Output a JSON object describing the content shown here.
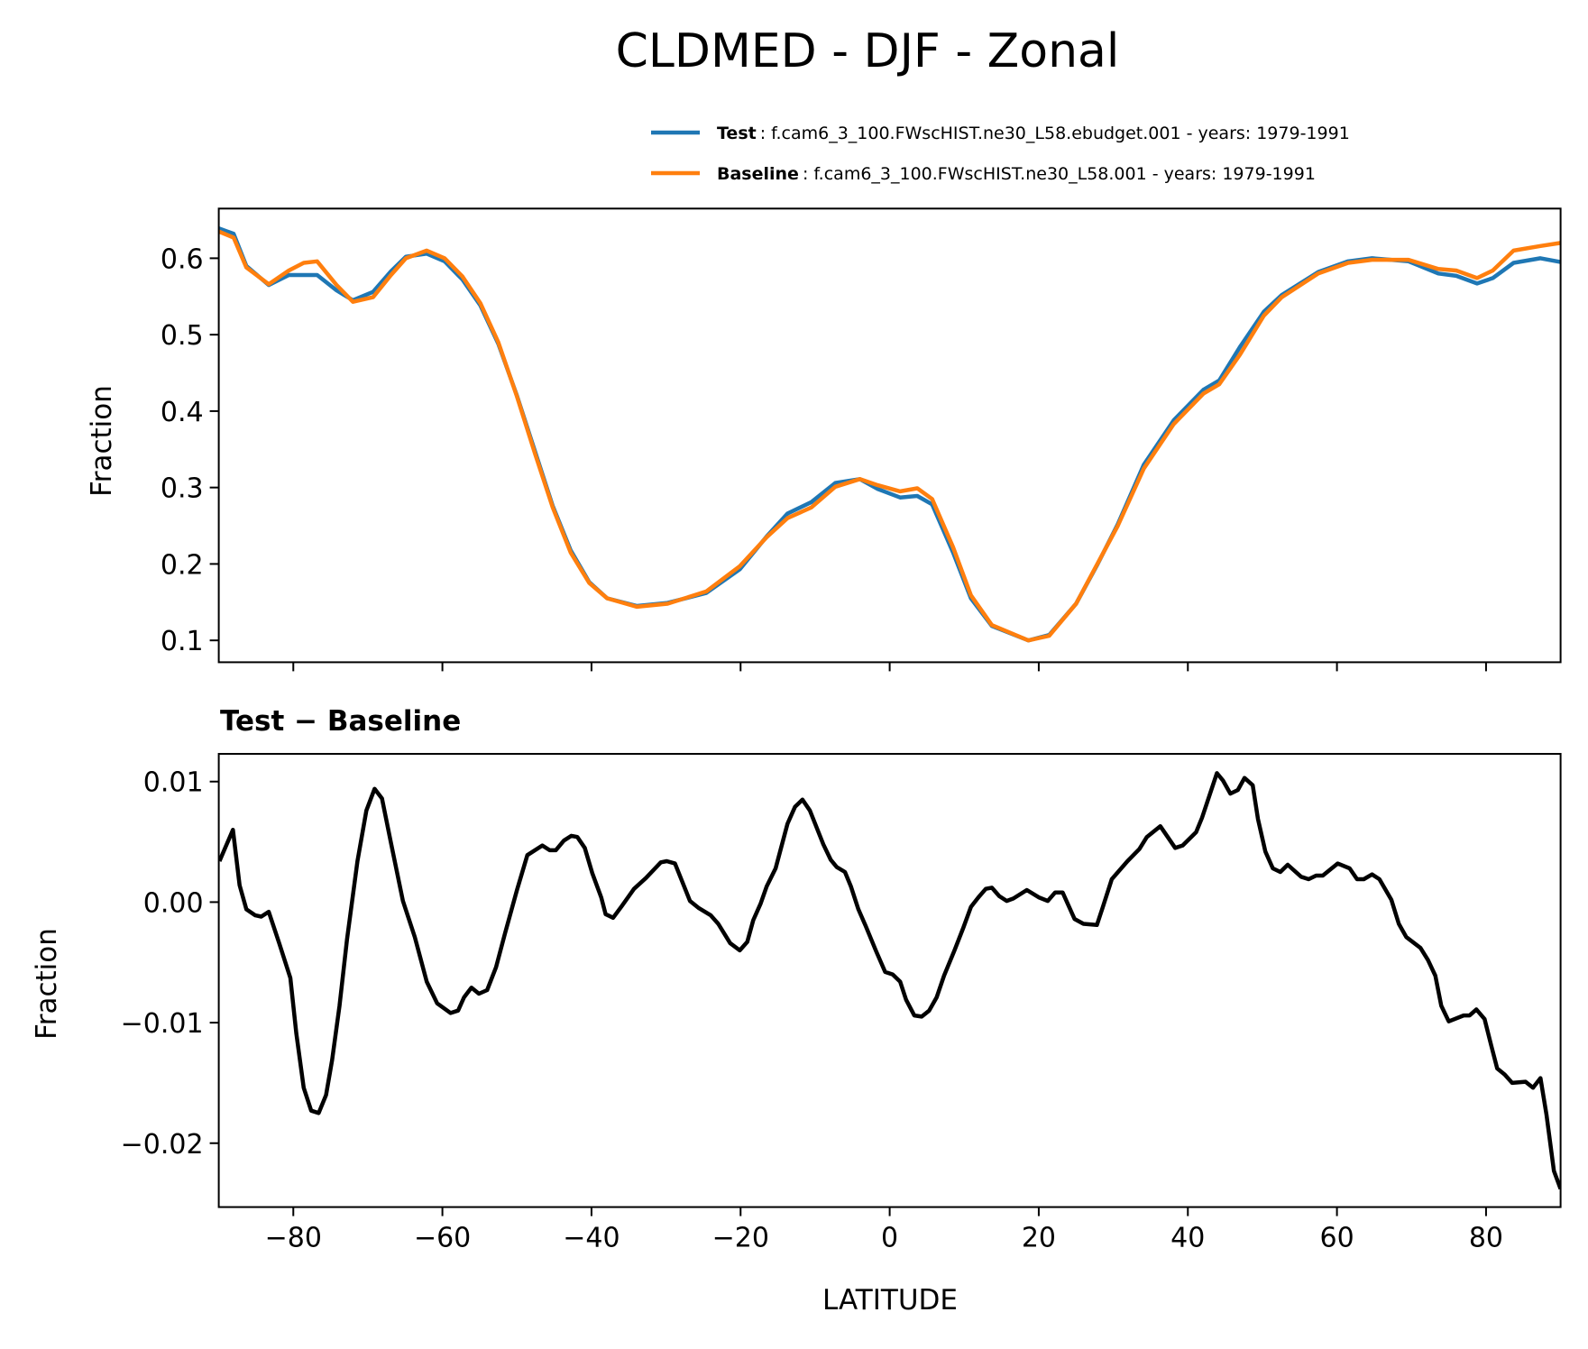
{
  "chart_data": [
    {
      "type": "line",
      "title": "CLDMED - DJF - Zonal",
      "xlabel": "",
      "ylabel": "Fraction",
      "xlim": [
        -90,
        90
      ],
      "ylim": [
        0.0714,
        0.665
      ],
      "x_ticks": [
        -80,
        -60,
        -40,
        -20,
        0,
        20,
        40,
        60,
        80
      ],
      "y_ticks": [
        0.1,
        0.2,
        0.3,
        0.4,
        0.5,
        0.6
      ],
      "y_ticklabels": [
        "0.1",
        "0.2",
        "0.3",
        "0.4",
        "0.5",
        "0.6"
      ],
      "grid": false,
      "legend_position": "top-right",
      "legend": [
        {
          "name": "Test",
          "desc": ": f.cam6_3_100.FWscHIST.ne30_L58.ebudget.001 - years: 1979-1991",
          "color": "#1f77b4"
        },
        {
          "name": "Baseline",
          "desc": ": f.cam6_3_100.FWscHIST.ne30_L58.001 - years: 1979-1991",
          "color": "#ff7f0e"
        }
      ],
      "x": [
        -90,
        -88,
        -86.3,
        -83.3,
        -80.6,
        -78.6,
        -76.8,
        -74.2,
        -72,
        -69.3,
        -66.9,
        -64.9,
        -62.1,
        -59.7,
        -57.3,
        -54.9,
        -52.5,
        -50,
        -47.6,
        -45.2,
        -42.8,
        -40.3,
        -37.9,
        -33.9,
        -29.8,
        -24.6,
        -20.1,
        -16.5,
        -13.7,
        -10.5,
        -7.3,
        -4,
        -1.6,
        1.4,
        3.7,
        5.7,
        8.5,
        10.9,
        13.7,
        18.6,
        21.4,
        25,
        27.8,
        30.6,
        34.1,
        38.1,
        42.1,
        44.2,
        47,
        50.2,
        52.6,
        57.5,
        61.5,
        64.7,
        69.6,
        73.6,
        76,
        78.8,
        80.9,
        83.7,
        87.3,
        90
      ],
      "series": [
        {
          "name": "Test",
          "color": "#1f77b4",
          "values": [
            0.639,
            0.632,
            0.59,
            0.565,
            0.578,
            0.578,
            0.578,
            0.558,
            0.545,
            0.556,
            0.583,
            0.602,
            0.606,
            0.596,
            0.572,
            0.538,
            0.488,
            0.42,
            0.348,
            0.276,
            0.218,
            0.176,
            0.155,
            0.145,
            0.149,
            0.162,
            0.193,
            0.236,
            0.266,
            0.281,
            0.306,
            0.311,
            0.298,
            0.287,
            0.289,
            0.278,
            0.215,
            0.155,
            0.119,
            0.1,
            0.107,
            0.148,
            0.198,
            0.252,
            0.33,
            0.388,
            0.428,
            0.44,
            0.484,
            0.53,
            0.552,
            0.582,
            0.596,
            0.6,
            0.596,
            0.58,
            0.577,
            0.567,
            0.574,
            0.594,
            0.6,
            0.595
          ]
        },
        {
          "name": "Baseline",
          "color": "#ff7f0e",
          "values": [
            0.635,
            0.627,
            0.588,
            0.566,
            0.584,
            0.594,
            0.596,
            0.565,
            0.543,
            0.549,
            0.578,
            0.6,
            0.61,
            0.6,
            0.576,
            0.541,
            0.49,
            0.419,
            0.345,
            0.274,
            0.215,
            0.175,
            0.155,
            0.144,
            0.148,
            0.164,
            0.197,
            0.235,
            0.26,
            0.274,
            0.301,
            0.311,
            0.303,
            0.295,
            0.299,
            0.285,
            0.222,
            0.159,
            0.12,
            0.1,
            0.106,
            0.148,
            0.199,
            0.25,
            0.325,
            0.383,
            0.423,
            0.435,
            0.474,
            0.525,
            0.549,
            0.58,
            0.594,
            0.598,
            0.598,
            0.586,
            0.584,
            0.574,
            0.584,
            0.61,
            0.616,
            0.62
          ]
        }
      ]
    },
    {
      "type": "line",
      "title": "Test − Baseline",
      "xlabel": "LATITUDE",
      "ylabel": "Fraction",
      "xlim": [
        -90,
        90
      ],
      "ylim": [
        -0.0253,
        0.0123
      ],
      "x_ticks": [
        -80,
        -60,
        -40,
        -20,
        0,
        20,
        40,
        60,
        80
      ],
      "x_ticklabels": [
        "−80",
        "−60",
        "−40",
        "−20",
        "0",
        "20",
        "40",
        "60",
        "80"
      ],
      "y_ticks": [
        -0.02,
        -0.01,
        0.0,
        0.01
      ],
      "y_ticklabels": [
        "−0.02",
        "−0.01",
        "0.00",
        "0.01"
      ],
      "grid": false,
      "x": [
        -89.9,
        -88.1,
        -87.2,
        -86.3,
        -85.1,
        -84.3,
        -83.3,
        -81.9,
        -80.4,
        -79.6,
        -78.6,
        -77.6,
        -76.6,
        -75.6,
        -74.8,
        -73.8,
        -72.8,
        -71.4,
        -70.2,
        -69.1,
        -68.1,
        -66.9,
        -65.3,
        -63.7,
        -62.1,
        -60.7,
        -58.9,
        -57.9,
        -57.1,
        -56.1,
        -55.1,
        -54,
        -52.8,
        -51.6,
        -50,
        -48.6,
        -46.6,
        -45.6,
        -44.8,
        -43.7,
        -42.7,
        -41.9,
        -40.9,
        -39.9,
        -38.7,
        -38.1,
        -37.1,
        -35.9,
        -34.3,
        -32.7,
        -30.7,
        -29.9,
        -28.8,
        -26.8,
        -25.6,
        -24,
        -23,
        -21.4,
        -20.1,
        -19.1,
        -18.3,
        -17.3,
        -16.5,
        -15.3,
        -13.7,
        -12.7,
        -11.7,
        -10.7,
        -8.9,
        -7.9,
        -7.1,
        -6,
        -5.2,
        -4.2,
        -3.2,
        -1.8,
        -0.6,
        0.4,
        1.4,
        2.2,
        3.3,
        4.3,
        5.3,
        6.3,
        7.3,
        8.7,
        9.9,
        10.9,
        11.9,
        12.9,
        13.7,
        14.7,
        15.7,
        16.6,
        18.4,
        20,
        21.2,
        22.2,
        23.2,
        24.8,
        26,
        27.8,
        28.6,
        29.8,
        31.9,
        33.5,
        34.5,
        36.3,
        38.3,
        39.3,
        41.1,
        41.9,
        43.9,
        44.7,
        45.7,
        46.7,
        47.6,
        48.7,
        49.4,
        50.4,
        51.4,
        52.4,
        53.4,
        55.2,
        56.2,
        57.2,
        58.1,
        59.1,
        60.1,
        61.7,
        62.7,
        63.6,
        64.7,
        65.7,
        67.3,
        68.3,
        69.3,
        71.2,
        72.2,
        73.2,
        74,
        75,
        77,
        77.8,
        78.7,
        79.8,
        80.7,
        81.5,
        82.5,
        83.5,
        85.3,
        86.3,
        87.3,
        88.1,
        89.1,
        90
      ],
      "series": [
        {
          "name": "Test − Baseline",
          "color": "#000000",
          "values": [
            0.0034,
            0.006,
            0.0014,
            -0.0006,
            -0.0011,
            -0.0012,
            -0.0008,
            -0.0034,
            -0.0063,
            -0.0109,
            -0.0154,
            -0.0173,
            -0.0175,
            -0.016,
            -0.0131,
            -0.0086,
            -0.0031,
            0.0034,
            0.0076,
            0.0094,
            0.0086,
            0.0049,
            0.0001,
            -0.0029,
            -0.0066,
            -0.0084,
            -0.0092,
            -0.009,
            -0.0079,
            -0.0071,
            -0.0076,
            -0.0073,
            -0.0054,
            -0.0026,
            0.001,
            0.0039,
            0.0047,
            0.0043,
            0.0043,
            0.0051,
            0.0055,
            0.0054,
            0.0045,
            0.0024,
            0.0004,
            -0.001,
            -0.0013,
            -0.0003,
            0.0011,
            0.002,
            0.0033,
            0.0034,
            0.0032,
            0.0001,
            -0.0005,
            -0.0011,
            -0.0018,
            -0.0034,
            -0.004,
            -0.0033,
            -0.0015,
            -0.0001,
            0.0013,
            0.0028,
            0.0065,
            0.0079,
            0.0085,
            0.0076,
            0.0048,
            0.0035,
            0.0029,
            0.0025,
            0.0013,
            -0.0006,
            -0.002,
            -0.0041,
            -0.0058,
            -0.006,
            -0.0066,
            -0.0081,
            -0.0094,
            -0.0095,
            -0.009,
            -0.0079,
            -0.0061,
            -0.004,
            -0.0021,
            -0.0004,
            0.0004,
            0.0011,
            0.0012,
            0.0005,
            0.0001,
            0.0003,
            0.001,
            0.0004,
            0.0001,
            0.0008,
            0.0008,
            -0.0014,
            -0.0018,
            -0.0019,
            -0.0004,
            0.0019,
            0.0034,
            0.0044,
            0.0054,
            0.0063,
            0.0045,
            0.0047,
            0.0058,
            0.007,
            0.0107,
            0.0101,
            0.009,
            0.0093,
            0.0103,
            0.0097,
            0.0069,
            0.0042,
            0.0028,
            0.0025,
            0.0031,
            0.0021,
            0.0019,
            0.0022,
            0.0022,
            0.0027,
            0.0032,
            0.0028,
            0.0019,
            0.0019,
            0.0023,
            0.0019,
            0.0002,
            -0.0018,
            -0.0029,
            -0.0038,
            -0.0048,
            -0.0061,
            -0.0086,
            -0.0099,
            -0.0094,
            -0.0094,
            -0.0089,
            -0.0097,
            -0.0119,
            -0.0138,
            -0.0143,
            -0.015,
            -0.0149,
            -0.0154,
            -0.0146,
            -0.0176,
            -0.0223,
            -0.0238
          ]
        }
      ]
    }
  ]
}
